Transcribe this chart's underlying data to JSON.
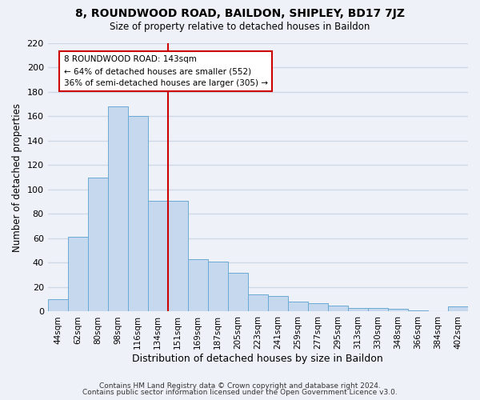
{
  "title": "8, ROUNDWOOD ROAD, BAILDON, SHIPLEY, BD17 7JZ",
  "subtitle": "Size of property relative to detached houses in Baildon",
  "xlabel": "Distribution of detached houses by size in Baildon",
  "ylabel": "Number of detached properties",
  "bar_labels": [
    "44sqm",
    "62sqm",
    "80sqm",
    "98sqm",
    "116sqm",
    "134sqm",
    "151sqm",
    "169sqm",
    "187sqm",
    "205sqm",
    "223sqm",
    "241sqm",
    "259sqm",
    "277sqm",
    "295sqm",
    "313sqm",
    "330sqm",
    "348sqm",
    "366sqm",
    "384sqm",
    "402sqm"
  ],
  "bar_values": [
    10,
    61,
    110,
    168,
    160,
    91,
    91,
    43,
    41,
    32,
    14,
    13,
    8,
    7,
    5,
    3,
    3,
    2,
    1,
    0,
    4
  ],
  "bar_color": "#c5d8ee",
  "bar_edge_color": "#6aaad4",
  "vline_color": "#cc0000",
  "annotation_title": "8 ROUNDWOOD ROAD: 143sqm",
  "annotation_line1": "← 64% of detached houses are smaller (552)",
  "annotation_line2": "36% of semi-detached houses are larger (305) →",
  "annotation_box_color": "#ffffff",
  "annotation_box_edge": "#cc0000",
  "ylim": [
    0,
    220
  ],
  "yticks": [
    0,
    20,
    40,
    60,
    80,
    100,
    120,
    140,
    160,
    180,
    200,
    220
  ],
  "footer1": "Contains HM Land Registry data © Crown copyright and database right 2024.",
  "footer2": "Contains public sector information licensed under the Open Government Licence v3.0.",
  "bg_color": "#eef2f8",
  "grid_color": "#d0d8e8"
}
